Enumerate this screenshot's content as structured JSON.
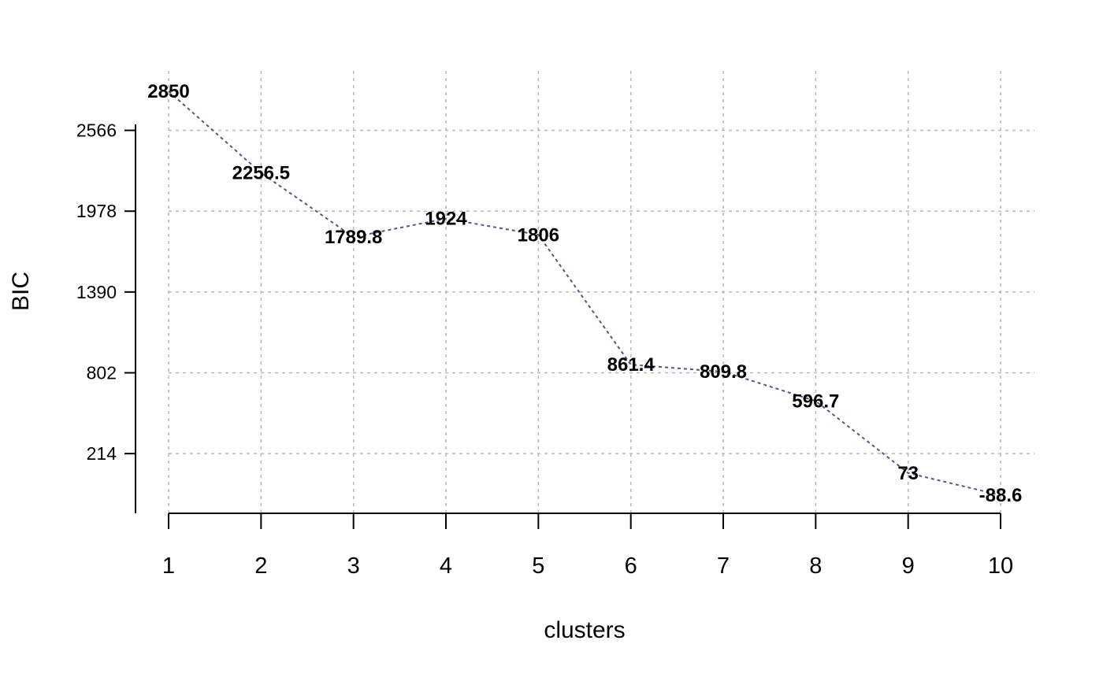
{
  "chart_data": {
    "type": "line",
    "title": "",
    "xlabel": "clusters",
    "ylabel": "BIC",
    "x": [
      1,
      2,
      3,
      4,
      5,
      6,
      7,
      8,
      9,
      10
    ],
    "series": [
      {
        "values": [
          2850,
          2256.5,
          1789.8,
          1924,
          1806,
          861.4,
          809.8,
          596.7,
          73,
          -88.6
        ],
        "labels": [
          "2850",
          "2256.5",
          "1789.8",
          "1924",
          "1806",
          "861.4",
          "809.8",
          "596.7",
          "73",
          "-88.6"
        ],
        "color": "#555588",
        "line_style": "dotted"
      }
    ],
    "x_ticks": [
      "1",
      "2",
      "3",
      "4",
      "5",
      "6",
      "7",
      "8",
      "9",
      "10"
    ],
    "y_ticks": [
      "214",
      "802",
      "1390",
      "1978",
      "2566"
    ],
    "xlim": [
      1,
      10
    ],
    "ylim": [
      -88.6,
      2850
    ],
    "grid": true,
    "legend": false
  }
}
